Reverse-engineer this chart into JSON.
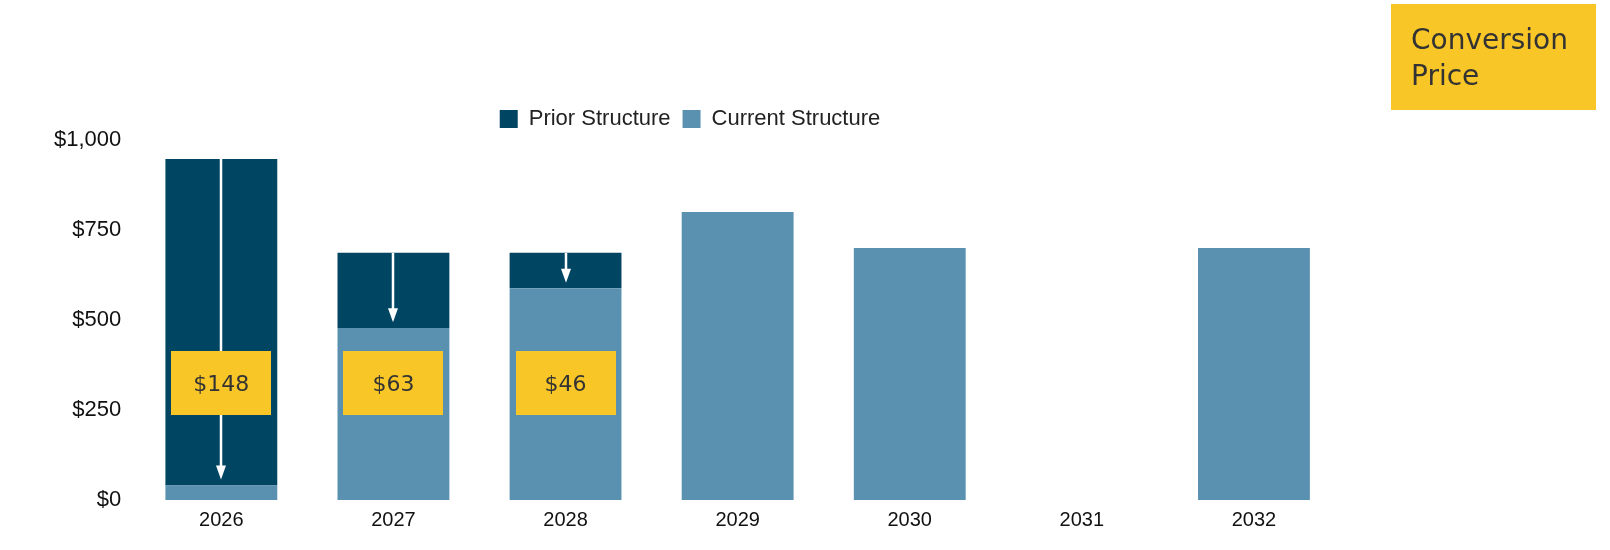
{
  "chart_data": {
    "type": "bar",
    "stacked": true,
    "legend": "top",
    "categories": [
      "2026",
      "2027",
      "2028",
      "2029",
      "2030",
      "2031",
      "2032"
    ],
    "series": [
      {
        "name": "Current Structure",
        "color": "#5a91b0",
        "values": [
          40,
          478,
          588,
          800,
          700,
          null,
          700
        ]
      },
      {
        "name": "Prior Structure",
        "color": "#004562",
        "values": [
          907,
          209,
          99,
          null,
          null,
          null,
          null
        ]
      }
    ],
    "ylim": [
      0,
      1000
    ],
    "yticks": [
      {
        "value": 0,
        "label": "$0"
      },
      {
        "value": 250,
        "label": "$250"
      },
      {
        "value": 500,
        "label": "$500"
      },
      {
        "value": 750,
        "label": "$750"
      },
      {
        "value": 1000,
        "label": "$1,000"
      }
    ],
    "annotations": [
      "$148",
      "$63",
      "$46",
      "Conversion Price"
    ]
  }
}
